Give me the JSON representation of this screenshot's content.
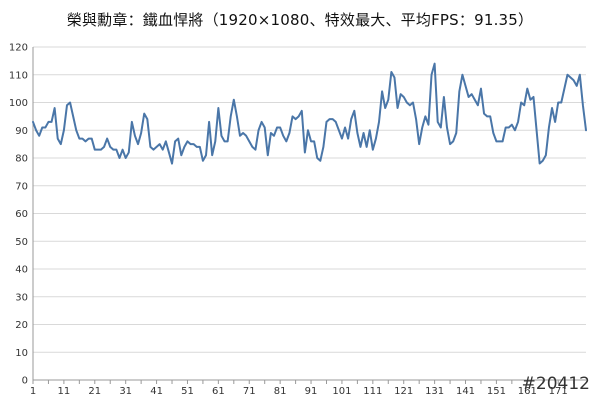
{
  "chart_data": {
    "type": "line",
    "title": "榮與勳章：鐵血悍將（1920×1080、特效最大、平均FPS：91.35）",
    "xlabel": "",
    "ylabel": "",
    "ylim": [
      0,
      120
    ],
    "yticks": [
      0,
      10,
      20,
      30,
      40,
      50,
      60,
      70,
      80,
      90,
      100,
      110,
      120
    ],
    "xticks": [
      1,
      11,
      21,
      31,
      41,
      51,
      61,
      71,
      81,
      91,
      101,
      111,
      121,
      131,
      141,
      151,
      161,
      171
    ],
    "grid": true,
    "legend": "none",
    "line_color": "#4a76a8",
    "series": [
      {
        "x_start": 1,
        "values": [
          93,
          90,
          88,
          91,
          91,
          93,
          93,
          98,
          87,
          85,
          90,
          99,
          100,
          95,
          90,
          87,
          87,
          86,
          87,
          87,
          83,
          83,
          83,
          84,
          87,
          84,
          83,
          83,
          80,
          83,
          80,
          82,
          93,
          88,
          85,
          89,
          96,
          94,
          84,
          83,
          84,
          85,
          83,
          86,
          82,
          78,
          86,
          87,
          81,
          84,
          86,
          85,
          85,
          84,
          84,
          79,
          81,
          93,
          81,
          86,
          98,
          88,
          86,
          86,
          95,
          101,
          95,
          88,
          89,
          88,
          86,
          84,
          83,
          90,
          93,
          91,
          81,
          89,
          88,
          91,
          91,
          88,
          86,
          89,
          95,
          94,
          95,
          97,
          82,
          90,
          86,
          86,
          80,
          79,
          84,
          93,
          94,
          94,
          93,
          90,
          87,
          91,
          87,
          94,
          97,
          89,
          84,
          89,
          84,
          90,
          83,
          87,
          93,
          104,
          98,
          101,
          111,
          109,
          98,
          103,
          102,
          100,
          99,
          100,
          94,
          85,
          91,
          95,
          92,
          110,
          114,
          93,
          91,
          102,
          91,
          85,
          86,
          89,
          104,
          110,
          106,
          102,
          103,
          101,
          99,
          105,
          96,
          95,
          95,
          89,
          86,
          86,
          86,
          91,
          91,
          92,
          90,
          93,
          100,
          99,
          105,
          101,
          102,
          90,
          78,
          79,
          81,
          91,
          98,
          93,
          100,
          100,
          105,
          110,
          109,
          108,
          106,
          110,
          99,
          90
        ]
      }
    ]
  },
  "watermark": "#20412"
}
